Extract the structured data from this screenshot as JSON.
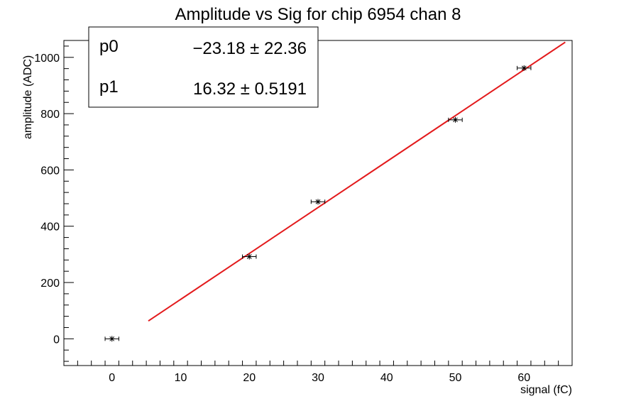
{
  "chart_data": {
    "type": "scatter",
    "title": "Amplitude vs Sig for chip 6954 chan 8",
    "xlabel": "signal (fC)",
    "ylabel": "amplitude (ADC)",
    "xlim": [
      -7,
      67
    ],
    "ylim": [
      -95,
      1060
    ],
    "x_ticks": [
      0,
      10,
      20,
      30,
      40,
      50,
      60
    ],
    "y_ticks": [
      0,
      200,
      400,
      600,
      800,
      1000
    ],
    "grid": false,
    "points": [
      {
        "x": 0,
        "y": 0,
        "xerr": 1
      },
      {
        "x": 20,
        "y": 292,
        "xerr": 1
      },
      {
        "x": 30,
        "y": 487,
        "xerr": 1
      },
      {
        "x": 50,
        "y": 778,
        "xerr": 1
      },
      {
        "x": 60,
        "y": 962,
        "xerr": 1
      }
    ],
    "fit": {
      "color": "#e31a1c",
      "p0": -23.18,
      "p1": 16.32,
      "x_range": [
        5.3,
        66
      ]
    },
    "stats_box": {
      "rows": [
        {
          "name": "p0",
          "value": "−23.18 ± 22.36"
        },
        {
          "name": "p1",
          "value": "16.32 ± 0.5191"
        }
      ]
    }
  }
}
